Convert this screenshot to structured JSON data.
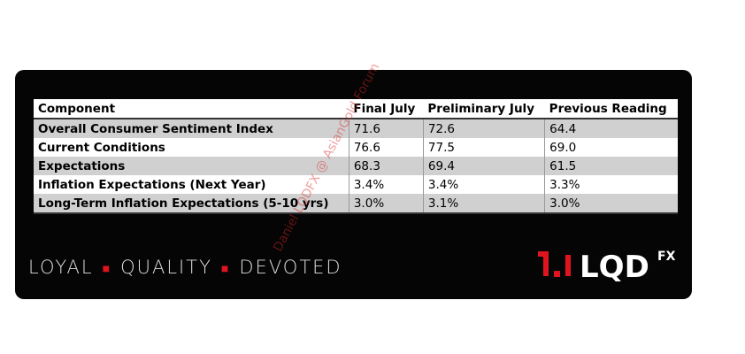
{
  "table": {
    "header": [
      "Component",
      "Final July",
      "Preliminary July",
      "Previous Reading"
    ],
    "rows": [
      [
        "Overall Consumer Sentiment Index",
        "71.6",
        "72.6",
        "64.4"
      ],
      [
        "Current Conditions",
        "76.6",
        "77.5",
        "69.0"
      ],
      [
        "Expectations",
        "68.3",
        "69.4",
        "61.5"
      ],
      [
        "Inflation Expectations (Next Year)",
        "3.4%",
        "3.4%",
        "3.3%"
      ],
      [
        "Long-Term Inflation Expectations (5-10 yrs)",
        "3.0%",
        "3.1%",
        "3.0%"
      ]
    ]
  },
  "tagline": [
    "LOYAL",
    "QUALITY",
    "DEVOTED"
  ],
  "logo": {
    "name": "LQD",
    "suffix": "FX"
  },
  "watermark": "Daniel LQDFX @ AsianGold Forum"
}
